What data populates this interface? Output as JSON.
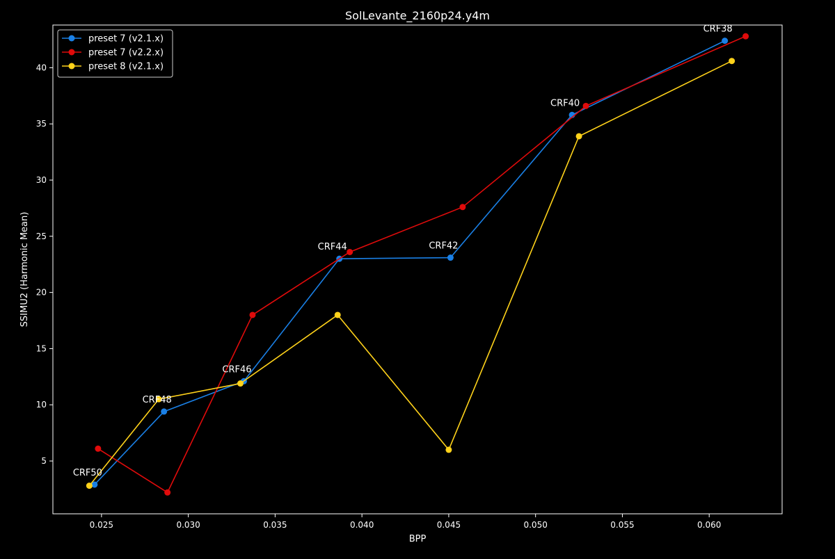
{
  "chart_data": {
    "type": "line",
    "title": "SolLevante_2160p24.y4m",
    "xlabel": "BPP",
    "ylabel": "SSIMU2 (Harmonic Mean)",
    "xlim": [
      0.0222,
      0.0642
    ],
    "ylim": [
      0.3,
      43.8
    ],
    "xticks": [
      0.025,
      0.03,
      0.035,
      0.04,
      0.045,
      0.05,
      0.055,
      0.06
    ],
    "xtick_labels": [
      "0.025",
      "0.030",
      "0.035",
      "0.040",
      "0.045",
      "0.050",
      "0.055",
      "0.060"
    ],
    "yticks": [
      5,
      10,
      15,
      20,
      25,
      30,
      35,
      40
    ],
    "ytick_labels": [
      "5",
      "10",
      "15",
      "20",
      "25",
      "30",
      "35",
      "40"
    ],
    "grid": false,
    "legend_position": "top-left",
    "series": [
      {
        "name": "preset 7 (v2.1.x)",
        "color": "#1a80e6",
        "x": [
          0.0246,
          0.0286,
          0.0332,
          0.0387,
          0.0451,
          0.0521,
          0.0609
        ],
        "y": [
          2.9,
          9.4,
          12.1,
          23.0,
          23.1,
          35.8,
          42.4
        ]
      },
      {
        "name": "preset 7 (v2.2.x)",
        "color": "#e00b0b",
        "x": [
          0.0248,
          0.0288,
          0.0337,
          0.0393,
          0.0458,
          0.0529,
          0.0621
        ],
        "y": [
          6.1,
          2.2,
          18.0,
          23.6,
          27.6,
          36.6,
          42.8
        ]
      },
      {
        "name": "preset 8 (v2.1.x)",
        "color": "#ffd21a",
        "x": [
          0.0243,
          0.0283,
          0.033,
          0.0386,
          0.045,
          0.0525,
          0.0613
        ],
        "y": [
          2.8,
          10.5,
          11.9,
          18.0,
          6.0,
          33.9,
          40.6
        ]
      }
    ],
    "annotations": [
      {
        "text": "CRF50",
        "x": 0.0246,
        "y": 2.9
      },
      {
        "text": "CRF48",
        "x": 0.0286,
        "y": 9.4
      },
      {
        "text": "CRF46",
        "x": 0.0332,
        "y": 12.1
      },
      {
        "text": "CRF44",
        "x": 0.0387,
        "y": 23.0
      },
      {
        "text": "CRF42",
        "x": 0.0451,
        "y": 23.1
      },
      {
        "text": "CRF40",
        "x": 0.0521,
        "y": 35.8
      },
      {
        "text": "CRF38",
        "x": 0.0609,
        "y": 42.4
      }
    ]
  }
}
